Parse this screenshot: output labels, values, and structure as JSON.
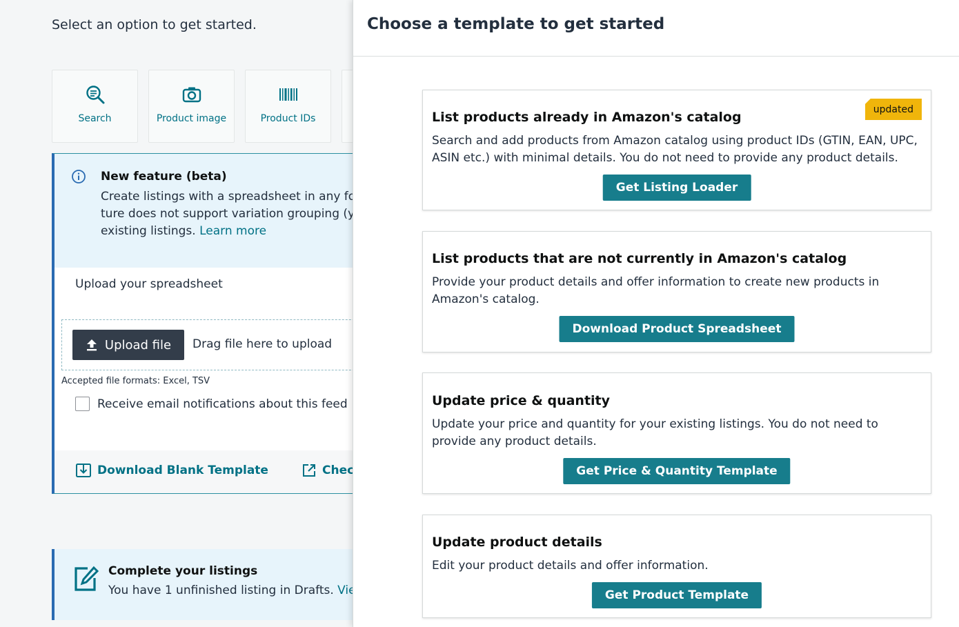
{
  "left": {
    "intro": "Select an option to get started.",
    "options": [
      {
        "label": "Search",
        "icon": "search-icon"
      },
      {
        "label": "Product image",
        "icon": "camera-icon"
      },
      {
        "label": "Product IDs",
        "icon": "barcode-icon"
      }
    ],
    "beta": {
      "title": "New feature (beta)",
      "line1": "Create listings with a spreadsheet in any forma",
      "line2": "ture does not support variation grouping (you",
      "line3": "existing listings. ",
      "learn_more": "Learn more"
    },
    "upload": {
      "title": "Upload your spreadsheet",
      "button": "Upload file",
      "drag_text": "Drag file here to upload",
      "formats": "Accepted file formats: Excel, TSV",
      "email_checkbox": "Receive email notifications about this feed"
    },
    "footer": {
      "download_blank": "Download Blank Template",
      "check": "Check"
    },
    "complete": {
      "title": "Complete your listings",
      "text": "You have 1 unfinished listing in Drafts. ",
      "link": "View"
    }
  },
  "drawer": {
    "title": "Choose a template to get started",
    "cards": [
      {
        "title": "List products already in Amazon's catalog",
        "description": "Search and add products from Amazon catalog using product IDs (GTIN, EAN, UPC, ASIN etc.) with minimal details. You do not need to provide any product details.",
        "button": "Get Listing Loader",
        "badge": "updated"
      },
      {
        "title": "List products that are not currently in Amazon's catalog",
        "description": "Provide your product details and offer information to create new products in Amazon's catalog.",
        "button": "Download Product Spreadsheet"
      },
      {
        "title": "Update price & quantity",
        "description": "Update your price and quantity for your existing listings. You do not need to provide any product details.",
        "button": "Get Price & Quantity Template"
      },
      {
        "title": "Update product details",
        "description": "Edit your product details and offer information.",
        "button": "Get Product Template"
      }
    ]
  },
  "colors": {
    "accent": "#007185",
    "button": "#177d8c",
    "badge": "#f0b50b",
    "info_bg": "#e7f4fb"
  }
}
